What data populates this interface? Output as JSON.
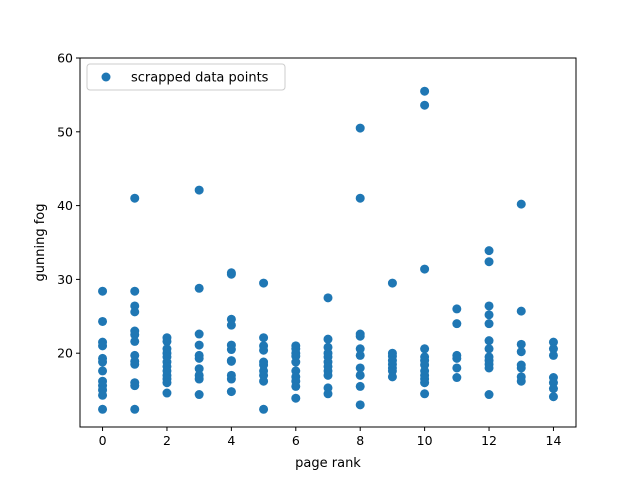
{
  "chart_data": {
    "type": "scatter",
    "title": "",
    "xlabel": "page rank",
    "ylabel": "gunning fog",
    "xlim": [
      -0.7,
      14.7
    ],
    "ylim": [
      10,
      60
    ],
    "xticks": [
      0,
      2,
      4,
      6,
      8,
      10,
      12,
      14
    ],
    "yticks": [
      20,
      30,
      40,
      50,
      60
    ],
    "grid": false,
    "legend_position": "top-left",
    "color": "#1f77b4",
    "series": [
      {
        "name": "scrapped data points",
        "points": [
          [
            0,
            28.4
          ],
          [
            0,
            24.3
          ],
          [
            0,
            21.5
          ],
          [
            0,
            21.0
          ],
          [
            0,
            19.3
          ],
          [
            0,
            18.8
          ],
          [
            0,
            17.6
          ],
          [
            0,
            16.2
          ],
          [
            0,
            15.6
          ],
          [
            0,
            15.0
          ],
          [
            0,
            14.3
          ],
          [
            0,
            12.4
          ],
          [
            1,
            41.0
          ],
          [
            1,
            28.4
          ],
          [
            1,
            26.4
          ],
          [
            1,
            25.6
          ],
          [
            1,
            23.0
          ],
          [
            1,
            22.5
          ],
          [
            1,
            21.6
          ],
          [
            1,
            19.7
          ],
          [
            1,
            18.9
          ],
          [
            1,
            18.5
          ],
          [
            1,
            16.0
          ],
          [
            1,
            15.6
          ],
          [
            1,
            12.4
          ],
          [
            2,
            22.1
          ],
          [
            2,
            21.6
          ],
          [
            2,
            20.6
          ],
          [
            2,
            20.0
          ],
          [
            2,
            19.5
          ],
          [
            2,
            18.8
          ],
          [
            2,
            18.2
          ],
          [
            2,
            17.6
          ],
          [
            2,
            17.0
          ],
          [
            2,
            16.5
          ],
          [
            2,
            16.0
          ],
          [
            2,
            14.6
          ],
          [
            3,
            42.1
          ],
          [
            3,
            28.8
          ],
          [
            3,
            22.6
          ],
          [
            3,
            21.1
          ],
          [
            3,
            19.7
          ],
          [
            3,
            19.3
          ],
          [
            3,
            17.9
          ],
          [
            3,
            17.0
          ],
          [
            3,
            16.5
          ],
          [
            3,
            14.4
          ],
          [
            4,
            30.9
          ],
          [
            4,
            30.7
          ],
          [
            4,
            24.6
          ],
          [
            4,
            23.8
          ],
          [
            4,
            21.1
          ],
          [
            4,
            20.5
          ],
          [
            4,
            19.0
          ],
          [
            4,
            18.9
          ],
          [
            4,
            17.0
          ],
          [
            4,
            16.5
          ],
          [
            4,
            14.8
          ],
          [
            5,
            29.5
          ],
          [
            5,
            22.1
          ],
          [
            5,
            21.0
          ],
          [
            5,
            20.4
          ],
          [
            5,
            18.8
          ],
          [
            5,
            18.4
          ],
          [
            5,
            17.6
          ],
          [
            5,
            17.0
          ],
          [
            5,
            16.2
          ],
          [
            5,
            12.4
          ],
          [
            6,
            21.0
          ],
          [
            6,
            20.6
          ],
          [
            6,
            20.0
          ],
          [
            6,
            19.6
          ],
          [
            6,
            18.8
          ],
          [
            6,
            17.6
          ],
          [
            6,
            16.8
          ],
          [
            6,
            16.2
          ],
          [
            6,
            15.5
          ],
          [
            6,
            13.9
          ],
          [
            7,
            27.5
          ],
          [
            7,
            21.9
          ],
          [
            7,
            20.8
          ],
          [
            7,
            20.0
          ],
          [
            7,
            19.5
          ],
          [
            7,
            18.8
          ],
          [
            7,
            18.2
          ],
          [
            7,
            17.6
          ],
          [
            7,
            17.0
          ],
          [
            7,
            15.3
          ],
          [
            7,
            14.5
          ],
          [
            8,
            50.5
          ],
          [
            8,
            41.0
          ],
          [
            8,
            22.6
          ],
          [
            8,
            22.3
          ],
          [
            8,
            20.6
          ],
          [
            8,
            19.7
          ],
          [
            8,
            18.0
          ],
          [
            8,
            17.0
          ],
          [
            8,
            15.5
          ],
          [
            8,
            13.0
          ],
          [
            9,
            29.5
          ],
          [
            9,
            20.0
          ],
          [
            9,
            19.6
          ],
          [
            9,
            19.0
          ],
          [
            9,
            18.5
          ],
          [
            9,
            18.0
          ],
          [
            9,
            17.6
          ],
          [
            9,
            16.8
          ],
          [
            10,
            55.5
          ],
          [
            10,
            53.6
          ],
          [
            10,
            31.4
          ],
          [
            10,
            20.6
          ],
          [
            10,
            19.5
          ],
          [
            10,
            19.0
          ],
          [
            10,
            18.4
          ],
          [
            10,
            17.6
          ],
          [
            10,
            17.0
          ],
          [
            10,
            16.5
          ],
          [
            10,
            16.0
          ],
          [
            10,
            14.5
          ],
          [
            11,
            26.0
          ],
          [
            11,
            24.0
          ],
          [
            11,
            19.7
          ],
          [
            11,
            19.3
          ],
          [
            11,
            18.0
          ],
          [
            11,
            16.7
          ],
          [
            12,
            33.9
          ],
          [
            12,
            32.4
          ],
          [
            12,
            26.4
          ],
          [
            12,
            25.2
          ],
          [
            12,
            24.0
          ],
          [
            12,
            21.7
          ],
          [
            12,
            20.6
          ],
          [
            12,
            19.5
          ],
          [
            12,
            19.0
          ],
          [
            12,
            18.5
          ],
          [
            12,
            18.0
          ],
          [
            12,
            14.4
          ],
          [
            13,
            40.2
          ],
          [
            13,
            25.7
          ],
          [
            13,
            21.2
          ],
          [
            13,
            20.2
          ],
          [
            13,
            18.4
          ],
          [
            13,
            18.0
          ],
          [
            13,
            16.8
          ],
          [
            13,
            16.2
          ],
          [
            14,
            21.5
          ],
          [
            14,
            20.6
          ],
          [
            14,
            19.7
          ],
          [
            14,
            16.7
          ],
          [
            14,
            16.0
          ],
          [
            14,
            15.2
          ],
          [
            14,
            14.1
          ]
        ]
      }
    ]
  }
}
